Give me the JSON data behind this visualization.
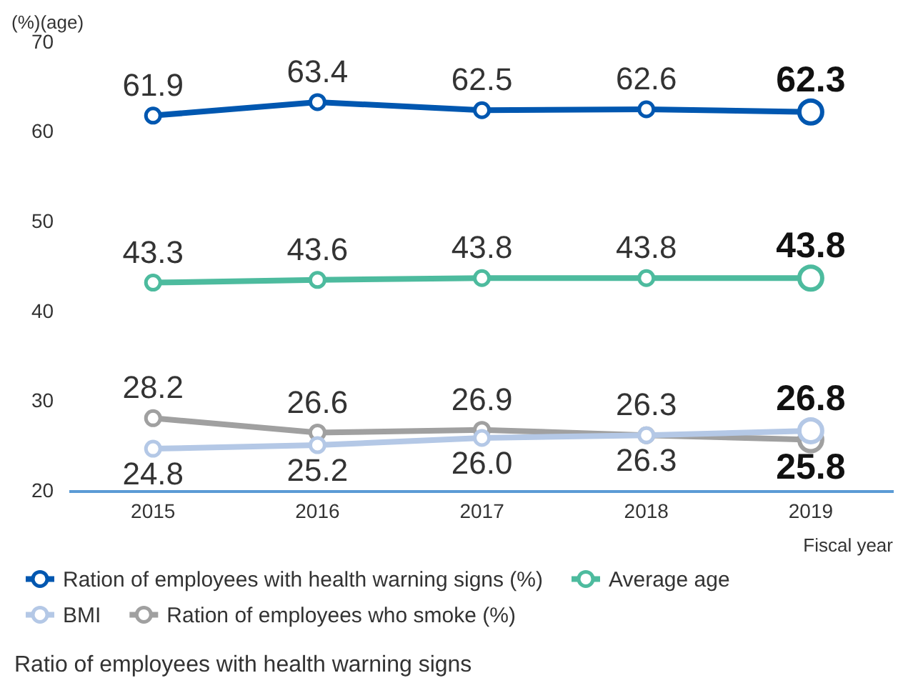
{
  "chart_data": {
    "type": "line",
    "title": "Ratio of employees with health warning signs",
    "ylabel": "(%)(age)",
    "xlabel": "Fiscal year",
    "categories": [
      "2015",
      "2016",
      "2017",
      "2018",
      "2019"
    ],
    "series": [
      {
        "name": "Ration of employees with health warning signs (%)",
        "color": "#0057b0",
        "values": [
          61.9,
          63.4,
          62.5,
          62.6,
          62.3
        ]
      },
      {
        "name": "Average age",
        "color": "#4dbb9e",
        "values": [
          43.3,
          43.6,
          43.8,
          43.8,
          43.8
        ]
      },
      {
        "name": "BMI",
        "color": "#b4c8e6",
        "values": [
          24.8,
          25.2,
          26.0,
          26.3,
          26.8
        ],
        "value_labels": [
          "24.8",
          "25.2",
          "26.0",
          "26.3",
          "26.8"
        ]
      },
      {
        "name": "Ration of employees who smoke (%)",
        "color": "#a0a0a0",
        "values": [
          28.2,
          26.6,
          26.9,
          26.3,
          25.8
        ]
      }
    ],
    "ylim": [
      20,
      70
    ],
    "yticks": [
      20,
      30,
      40,
      50,
      60,
      70
    ],
    "grid": false,
    "legend": "bottom",
    "marker": "circle",
    "line_style": "solid",
    "data_labels": true
  }
}
